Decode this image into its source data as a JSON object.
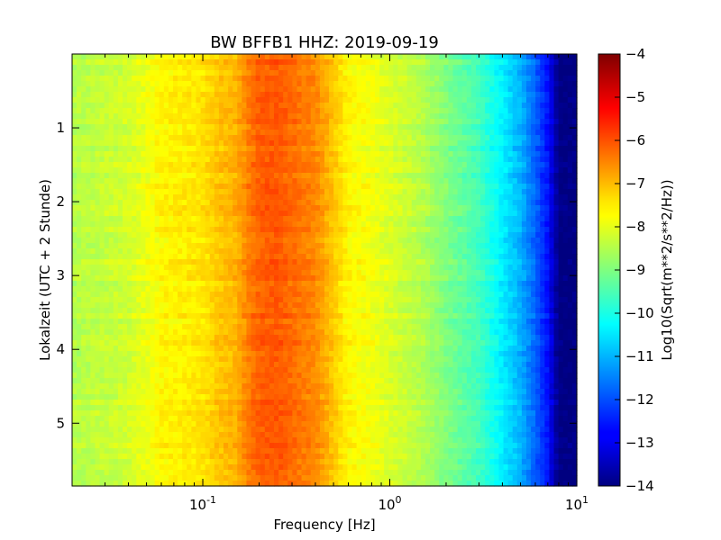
{
  "chart_data": {
    "type": "heatmap",
    "title": "BW BFFB1 HHZ: 2019-09-19",
    "xlabel": "Frequency [Hz]",
    "ylabel": "Lokalzeit (UTC + 2 Stunde)",
    "colorbar_label": "Log10(Sqrt(m**2/s**2/Hz))",
    "x_scale": "log",
    "xlim": [
      0.02,
      10
    ],
    "ylim": [
      5.85,
      0
    ],
    "x_ticks": [
      {
        "value": 0.1,
        "base": "10",
        "exp": "-1"
      },
      {
        "value": 1,
        "base": "10",
        "exp": "0"
      },
      {
        "value": 10,
        "base": "10",
        "exp": "1"
      }
    ],
    "y_ticks": [
      {
        "value": 1,
        "label": "1"
      },
      {
        "value": 2,
        "label": "2"
      },
      {
        "value": 3,
        "label": "3"
      },
      {
        "value": 4,
        "label": "4"
      },
      {
        "value": 5,
        "label": "5"
      }
    ],
    "colorbar_range": [
      -14,
      -4
    ],
    "colorbar_ticks": [
      "-4",
      "-5",
      "-6",
      "-7",
      "-8",
      "-9",
      "-10",
      "-11",
      "-12",
      "-13",
      "-14"
    ],
    "colormap": "jet",
    "psd_profile": {
      "frequency_hz": [
        0.02,
        0.04,
        0.06,
        0.1,
        0.12,
        0.15,
        0.18,
        0.2,
        0.25,
        0.3,
        0.4,
        0.5,
        0.6,
        0.7,
        0.8,
        1.0,
        1.5,
        2.0,
        3.0,
        4.0,
        5.0,
        6.0,
        7.0,
        8.0,
        10.0
      ],
      "log10_psd": [
        -8.5,
        -8.2,
        -7.7,
        -7.5,
        -7.2,
        -7.0,
        -6.4,
        -6.2,
        -6.1,
        -6.3,
        -6.6,
        -7.2,
        -7.7,
        -7.8,
        -7.9,
        -8.1,
        -8.5,
        -9.0,
        -9.6,
        -10.4,
        -11.0,
        -11.8,
        -12.6,
        -14.0,
        -14.0
      ]
    },
    "grid": false
  }
}
